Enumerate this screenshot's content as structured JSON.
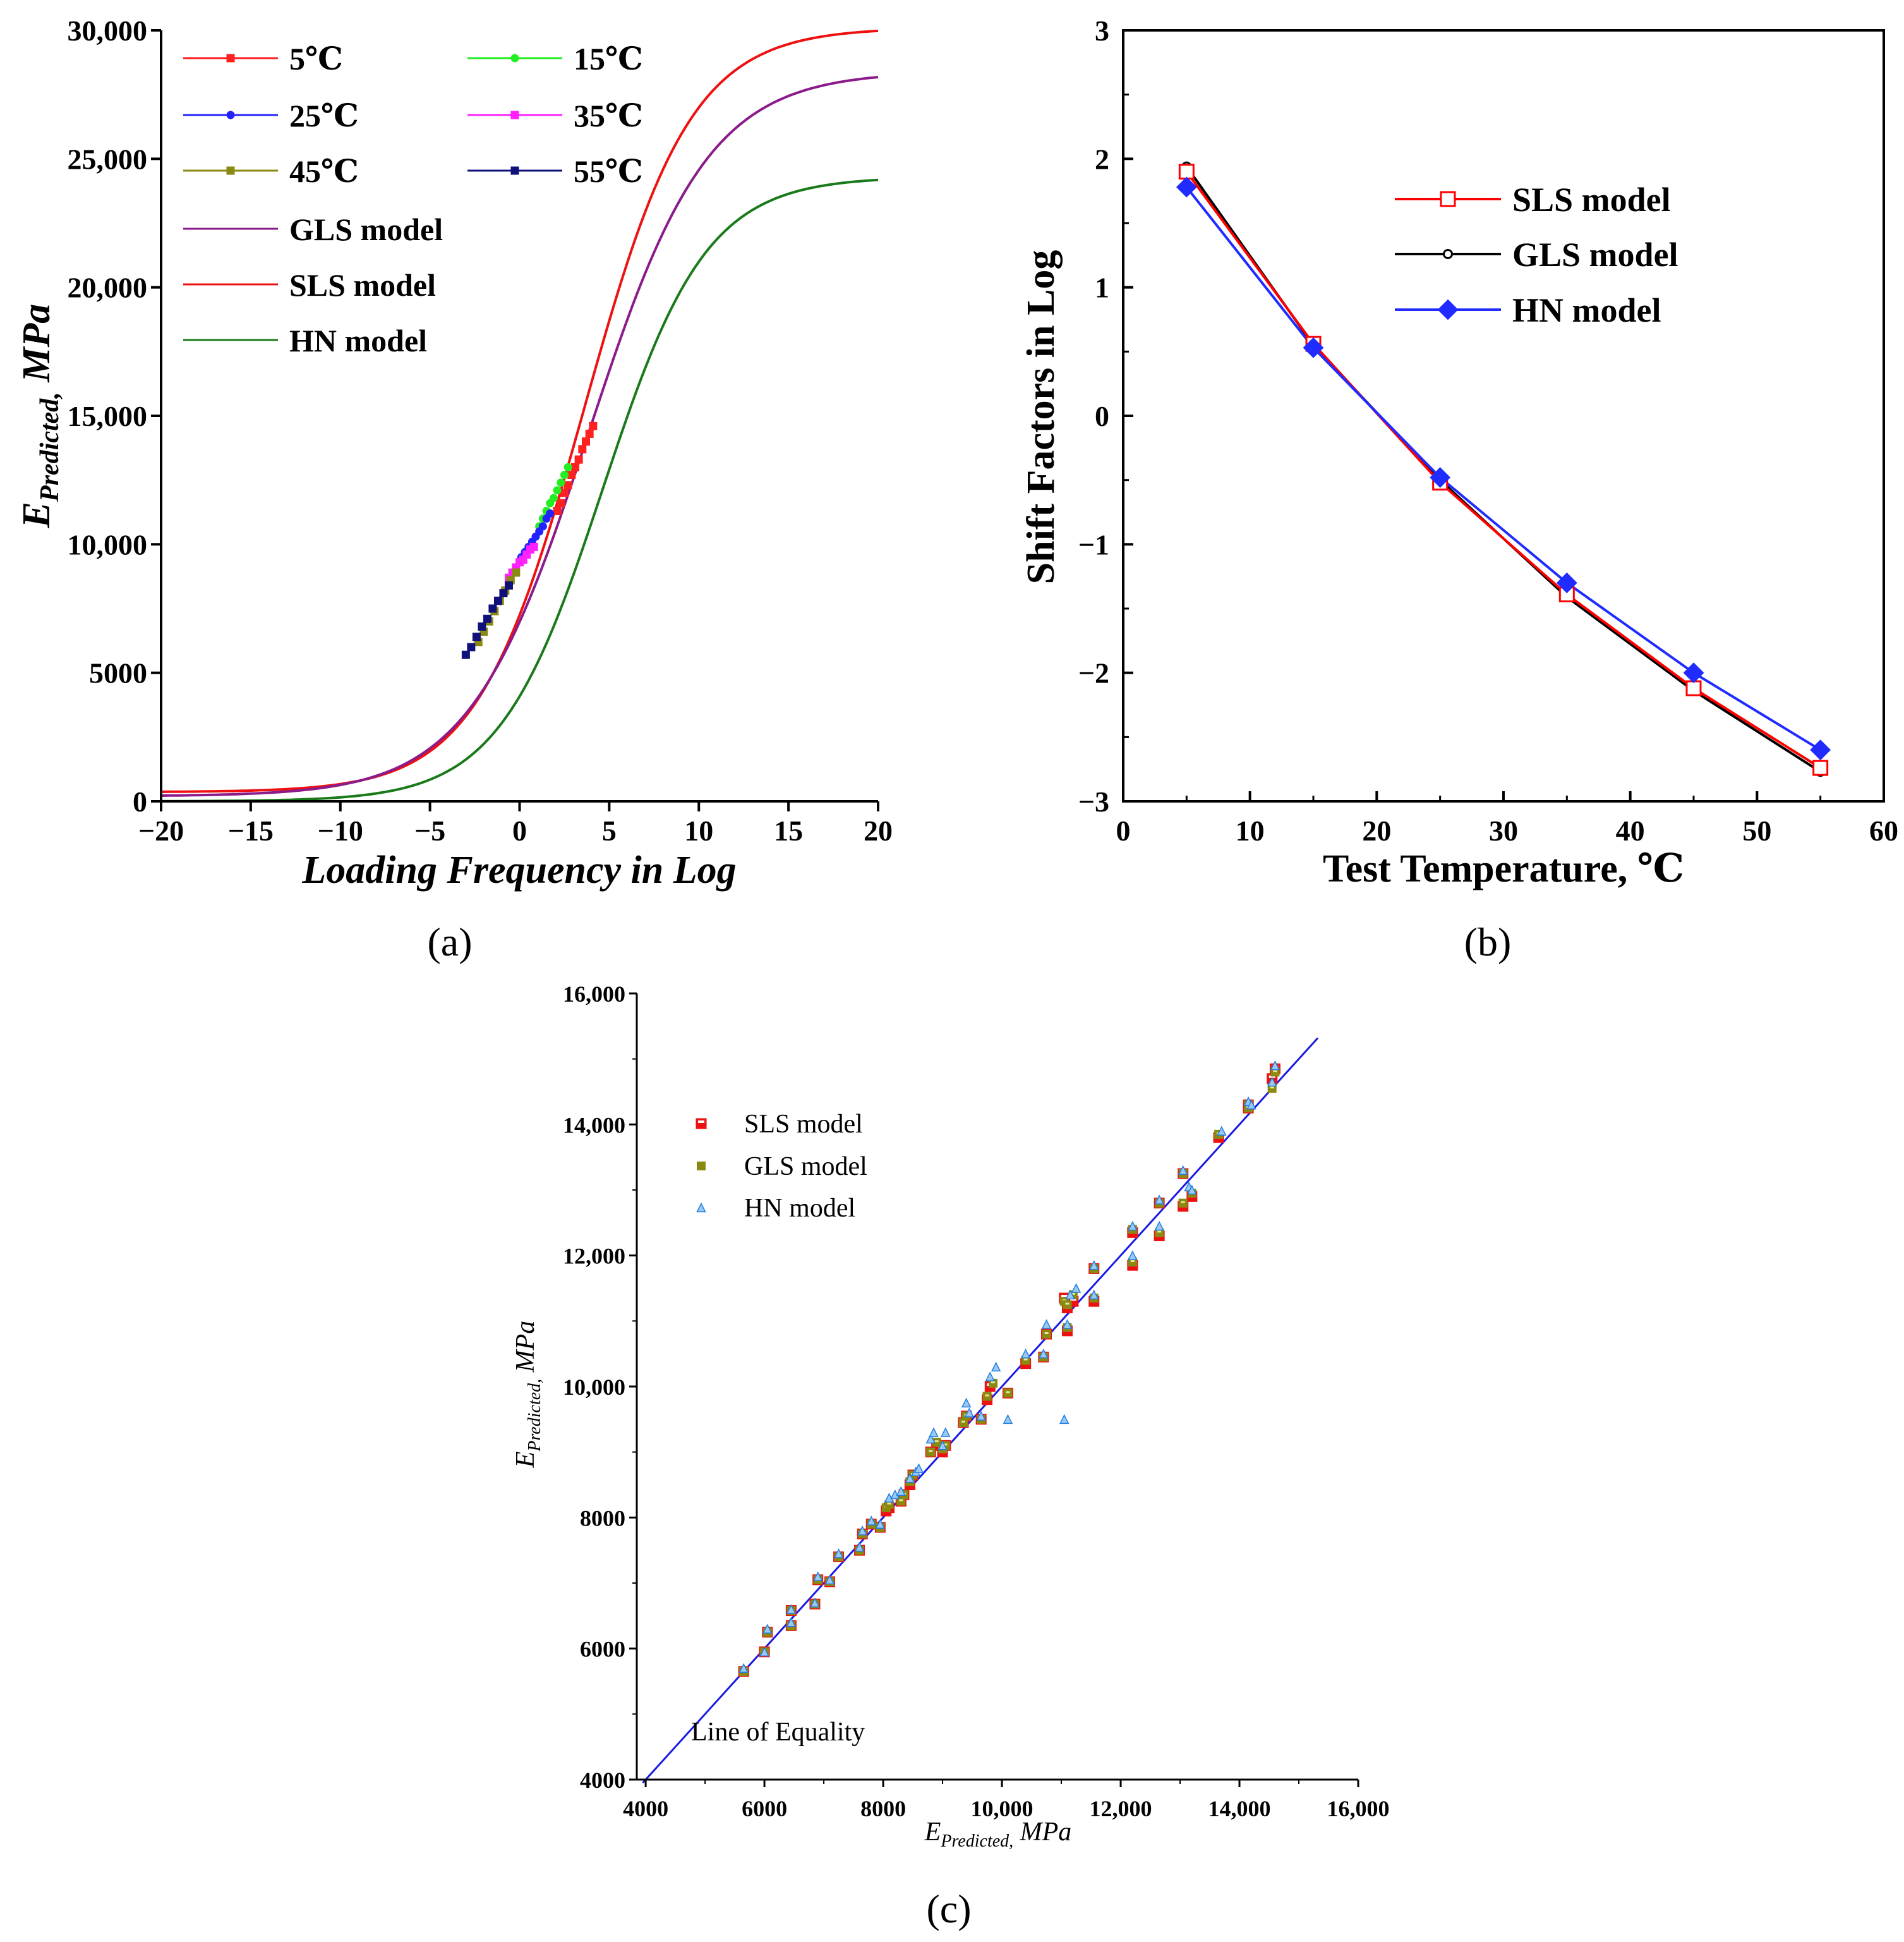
{
  "colors": {
    "t5": "#ff2020",
    "t15": "#22ee22",
    "t25": "#2222ff",
    "t35": "#ff22ff",
    "t45": "#8a8a10",
    "t55": "#10107a",
    "gls": "#8b1a8b",
    "sls": "#ee1111",
    "hn": "#1a7a1a",
    "b_sls": "#ff0000",
    "b_gls": "#000000",
    "b_hn": "#1f2bff",
    "c_sls": "#ee1111",
    "c_gls": "#8a8a10",
    "c_hn": "#1e7fe0",
    "c_line": "#1a1ae6"
  },
  "captions": {
    "a": "(a)",
    "b": "(b)",
    "c": "(c)"
  },
  "chart_data": [
    {
      "type": "line",
      "panel": "a",
      "xlabel": "Loading Frequency in Log",
      "ylabel_main": "E",
      "ylabel_sub": "Predicted,",
      "ylabel_unit": " MPa",
      "xlim": [
        -20,
        20
      ],
      "ylim": [
        0,
        30000
      ],
      "xticks": [
        "−20",
        "−15",
        "−10",
        "−5",
        "0",
        "5",
        "10",
        "15",
        "20"
      ],
      "yticks": [
        "0",
        "5000",
        "10,000",
        "15,000",
        "20,000",
        "25,000",
        "30,000"
      ],
      "legend": [
        "5℃",
        "15℃",
        "25℃",
        "35℃",
        "45℃",
        "55℃",
        "GLS model",
        "SLS model",
        "HN model"
      ],
      "curves": [
        {
          "name": "SLS model",
          "delta": 360,
          "max": 30100,
          "a": 1.2,
          "b": 0.335
        },
        {
          "name": "GLS model",
          "delta": 200,
          "max": 28400,
          "a": 1.15,
          "b": 0.3
        },
        {
          "name": "HN model",
          "delta": 0,
          "max": 24300,
          "a": 1.6,
          "b": 0.345
        }
      ],
      "series": [
        {
          "name": "5℃",
          "x": [
            2.1,
            2.3,
            2.5,
            2.7,
            2.9,
            3.1,
            3.3,
            3.5,
            3.7,
            3.9,
            4.1
          ],
          "y": [
            11300,
            11600,
            12000,
            12300,
            12700,
            13000,
            13300,
            13700,
            14000,
            14300,
            14600
          ]
        },
        {
          "name": "15℃",
          "x": [
            1.1,
            1.3,
            1.5,
            1.7,
            1.9,
            2.1,
            2.3,
            2.5,
            2.7
          ],
          "y": [
            10700,
            11000,
            11300,
            11600,
            11800,
            12100,
            12400,
            12700,
            13000
          ]
        },
        {
          "name": "25℃",
          "x": [
            0.1,
            0.3,
            0.5,
            0.7,
            0.9,
            1.1,
            1.3,
            1.5,
            1.7
          ],
          "y": [
            9500,
            9700,
            9900,
            10100,
            10300,
            10500,
            10700,
            11000,
            11200
          ]
        },
        {
          "name": "35℃",
          "x": [
            -0.6,
            -0.4,
            -0.2,
            0.0,
            0.2,
            0.4,
            0.6,
            0.8
          ],
          "y": [
            8700,
            8900,
            9100,
            9300,
            9400,
            9600,
            9800,
            9900
          ]
        },
        {
          "name": "45℃",
          "x": [
            -2.3,
            -2.0,
            -1.7,
            -1.4,
            -1.1,
            -0.8,
            -0.5,
            -0.2
          ],
          "y": [
            6200,
            6600,
            7000,
            7400,
            7800,
            8200,
            8600,
            8900
          ]
        },
        {
          "name": "55℃",
          "x": [
            -3.0,
            -2.7,
            -2.4,
            -2.1,
            -1.8,
            -1.5,
            -1.2,
            -0.9,
            -0.6
          ],
          "y": [
            5700,
            6000,
            6400,
            6800,
            7100,
            7500,
            7800,
            8100,
            8400
          ]
        }
      ]
    },
    {
      "type": "line",
      "panel": "b",
      "xlabel": "Test Temperature, ℃",
      "ylabel": "Shift Factors in Log",
      "xlim": [
        0,
        60
      ],
      "ylim": [
        -3,
        3
      ],
      "xticks": [
        "0",
        "10",
        "20",
        "30",
        "40",
        "50",
        "60"
      ],
      "yticks": [
        "−3",
        "−2",
        "−1",
        "0",
        "1",
        "2",
        "3"
      ],
      "x": [
        5,
        15,
        25,
        35,
        45,
        55
      ],
      "series": [
        {
          "name": "SLS model",
          "values": [
            1.9,
            0.56,
            -0.52,
            -1.39,
            -2.12,
            -2.74
          ]
        },
        {
          "name": "GLS model",
          "values": [
            1.94,
            0.55,
            -0.5,
            -1.41,
            -2.14,
            -2.77
          ]
        },
        {
          "name": "HN model",
          "values": [
            1.78,
            0.53,
            -0.48,
            -1.3,
            -2.0,
            -2.6
          ]
        }
      ]
    },
    {
      "type": "scatter",
      "panel": "c",
      "xlabel_main": "E",
      "xlabel_sub": "Predicted,",
      "xlabel_unit": " MPa",
      "ylabel_main": "E",
      "ylabel_sub": "Predicted,",
      "ylabel_unit": " MPa",
      "xlim": [
        4000,
        16000
      ],
      "ylim": [
        4000,
        16000
      ],
      "xticks": [
        "4000",
        "6000",
        "8000",
        "10,000",
        "12,000",
        "14,000",
        "16,000"
      ],
      "yticks": [
        "4000",
        "6000",
        "8000",
        "10,000",
        "12,000",
        "14,000",
        "16,000"
      ],
      "annotation": "Line of Equality",
      "equality_line": {
        "x": [
          3950,
          15320
        ],
        "y": [
          3950,
          15320
        ]
      },
      "series": [
        {
          "name": "SLS model",
          "points": [
            [
              5650,
              5650
            ],
            [
              6000,
              5950
            ],
            [
              6050,
              6250
            ],
            [
              6450,
              6350
            ],
            [
              6450,
              6580
            ],
            [
              6850,
              6680
            ],
            [
              6900,
              7050
            ],
            [
              7100,
              7020
            ],
            [
              7250,
              7400
            ],
            [
              7600,
              7500
            ],
            [
              7650,
              7750
            ],
            [
              7800,
              7900
            ],
            [
              7950,
              7850
            ],
            [
              8050,
              8100
            ],
            [
              8100,
              8150
            ],
            [
              8300,
              8250
            ],
            [
              8350,
              8350
            ],
            [
              8450,
              8500
            ],
            [
              8500,
              8650
            ],
            [
              8800,
              9000
            ],
            [
              8900,
              9100
            ],
            [
              9000,
              9000
            ],
            [
              9050,
              9100
            ],
            [
              9350,
              9450
            ],
            [
              9400,
              9550
            ],
            [
              9650,
              9500
            ],
            [
              9750,
              9800
            ],
            [
              9800,
              10000
            ],
            [
              10100,
              9900
            ],
            [
              10400,
              10350
            ],
            [
              10700,
              10450
            ],
            [
              10750,
              10800
            ],
            [
              11050,
              11350
            ],
            [
              11100,
              11200
            ],
            [
              11100,
              10850
            ],
            [
              11200,
              11300
            ],
            [
              11550,
              11800
            ],
            [
              11550,
              11300
            ],
            [
              12200,
              12350
            ],
            [
              12200,
              11850
            ],
            [
              12650,
              12800
            ],
            [
              12650,
              12300
            ],
            [
              13050,
              13250
            ],
            [
              13050,
              12750
            ],
            [
              13200,
              12900
            ],
            [
              13650,
              13800
            ],
            [
              14150,
              14300
            ],
            [
              14150,
              14250
            ],
            [
              14550,
              14700
            ],
            [
              14600,
              14850
            ]
          ]
        },
        {
          "name": "GLS model",
          "points": [
            [
              5650,
              5650
            ],
            [
              6000,
              5950
            ],
            [
              6050,
              6250
            ],
            [
              6450,
              6350
            ],
            [
              6450,
              6580
            ],
            [
              6850,
              6680
            ],
            [
              6900,
              7050
            ],
            [
              7100,
              7020
            ],
            [
              7250,
              7400
            ],
            [
              7600,
              7500
            ],
            [
              7650,
              7750
            ],
            [
              7800,
              7900
            ],
            [
              7950,
              7850
            ],
            [
              8050,
              8150
            ],
            [
              8100,
              8200
            ],
            [
              8300,
              8250
            ],
            [
              8350,
              8350
            ],
            [
              8450,
              8550
            ],
            [
              8500,
              8650
            ],
            [
              8800,
              9000
            ],
            [
              8900,
              9150
            ],
            [
              9000,
              9050
            ],
            [
              9050,
              9100
            ],
            [
              9350,
              9450
            ],
            [
              9400,
              9550
            ],
            [
              9650,
              9500
            ],
            [
              9750,
              9850
            ],
            [
              9850,
              10050
            ],
            [
              10100,
              9900
            ],
            [
              10400,
              10400
            ],
            [
              10700,
              10450
            ],
            [
              10750,
              10800
            ],
            [
              11050,
              11300
            ],
            [
              11100,
              11250
            ],
            [
              11100,
              10900
            ],
            [
              11200,
              11400
            ],
            [
              11550,
              11800
            ],
            [
              11550,
              11350
            ],
            [
              12200,
              12400
            ],
            [
              12200,
              11900
            ],
            [
              12650,
              12800
            ],
            [
              12650,
              12350
            ],
            [
              13050,
              13250
            ],
            [
              13050,
              12800
            ],
            [
              13200,
              12950
            ],
            [
              13650,
              13850
            ],
            [
              14150,
              14300
            ],
            [
              14150,
              14250
            ],
            [
              14550,
              14550
            ],
            [
              14600,
              14800
            ]
          ]
        },
        {
          "name": "HN model",
          "points": [
            [
              5650,
              5700
            ],
            [
              6000,
              5950
            ],
            [
              6050,
              6300
            ],
            [
              6450,
              6400
            ],
            [
              6450,
              6600
            ],
            [
              6850,
              6700
            ],
            [
              6900,
              7100
            ],
            [
              7100,
              7050
            ],
            [
              7250,
              7450
            ],
            [
              7600,
              7550
            ],
            [
              7650,
              7800
            ],
            [
              7800,
              7950
            ],
            [
              7950,
              7900
            ],
            [
              8100,
              8300
            ],
            [
              8200,
              8350
            ],
            [
              8300,
              8400
            ],
            [
              8450,
              8600
            ],
            [
              8550,
              8700
            ],
            [
              8600,
              8750
            ],
            [
              8800,
              9200
            ],
            [
              8850,
              9300
            ],
            [
              9000,
              9100
            ],
            [
              9050,
              9300
            ],
            [
              9400,
              9750
            ],
            [
              9450,
              9600
            ],
            [
              9650,
              9550
            ],
            [
              9800,
              10150
            ],
            [
              9900,
              10300
            ],
            [
              10100,
              9500
            ],
            [
              10400,
              10500
            ],
            [
              10700,
              10500
            ],
            [
              10750,
              10950
            ],
            [
              11050,
              9500
            ],
            [
              11100,
              10950
            ],
            [
              11150,
              11400
            ],
            [
              11250,
              11500
            ],
            [
              11550,
              11850
            ],
            [
              11550,
              11400
            ],
            [
              12200,
              12450
            ],
            [
              12200,
              12000
            ],
            [
              12650,
              12450
            ],
            [
              12650,
              12850
            ],
            [
              13050,
              13300
            ],
            [
              13150,
              13050
            ],
            [
              13200,
              13000
            ],
            [
              13700,
              13900
            ],
            [
              14150,
              14350
            ],
            [
              14200,
              14300
            ],
            [
              14550,
              14650
            ],
            [
              14600,
              14900
            ]
          ]
        }
      ]
    }
  ]
}
